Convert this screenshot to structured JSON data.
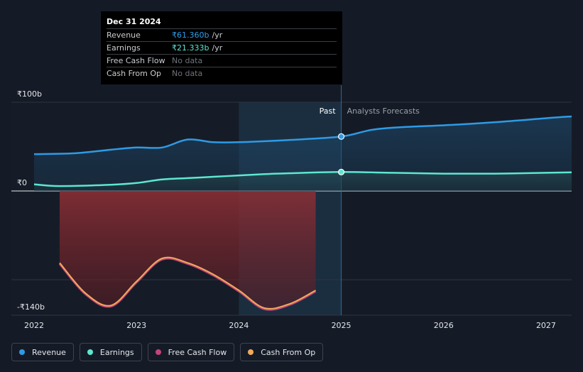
{
  "tooltip": {
    "date": "Dec 31 2024",
    "rows": [
      {
        "label": "Revenue",
        "value": "₹61.360b",
        "unit": "/yr"
      },
      {
        "label": "Earnings",
        "value": "₹21.333b",
        "unit": "/yr"
      },
      {
        "label": "Free Cash Flow",
        "value": "No data",
        "unit": ""
      },
      {
        "label": "Cash From Op",
        "value": "No data",
        "unit": ""
      }
    ]
  },
  "legend": [
    {
      "label": "Revenue",
      "color": "#2e9be6"
    },
    {
      "label": "Earnings",
      "color": "#5ee6d0"
    },
    {
      "label": "Free Cash Flow",
      "color": "#c2457a"
    },
    {
      "label": "Cash From Op",
      "color": "#f1aa5a"
    }
  ],
  "chart_data": {
    "type": "line",
    "title": "",
    "xlabel": "",
    "ylabel": "",
    "y_unit": "₹ billions",
    "y_tick_labels": [
      {
        "value": 100,
        "label": "₹100b"
      },
      {
        "value": 0,
        "label": "₹0"
      },
      {
        "value": -140,
        "label": "-₹140b"
      }
    ],
    "ylim": [
      -140,
      100
    ],
    "xlim": [
      2022,
      2027.25
    ],
    "x_tick_labels": [
      {
        "value": 2022,
        "label": "2022"
      },
      {
        "value": 2023,
        "label": "2023"
      },
      {
        "value": 2024,
        "label": "2024"
      },
      {
        "value": 2025,
        "label": "2025"
      },
      {
        "value": 2026,
        "label": "2026"
      },
      {
        "value": 2027,
        "label": "2027"
      }
    ],
    "past_label": "Past",
    "forecast_label": "Analysts Forecasts",
    "divider_x": 2025,
    "highlight_start_x": 2024,
    "series": [
      {
        "name": "Revenue",
        "color": "#2e9be6",
        "points": [
          [
            2022,
            41.5
          ],
          [
            2022.4,
            42.5
          ],
          [
            2022.75,
            46.5
          ],
          [
            2023,
            49
          ],
          [
            2023.25,
            49
          ],
          [
            2023.5,
            58
          ],
          [
            2023.75,
            55
          ],
          [
            2024,
            55
          ],
          [
            2024.5,
            57.5
          ],
          [
            2025,
            61.36
          ],
          [
            2025.3,
            69
          ],
          [
            2025.6,
            72
          ],
          [
            2026,
            74
          ],
          [
            2026.5,
            77.5
          ],
          [
            2027,
            82
          ],
          [
            2027.25,
            84
          ]
        ],
        "marker_at": [
          2025,
          61.36
        ]
      },
      {
        "name": "Earnings",
        "color": "#5ee6d0",
        "points": [
          [
            2022,
            7.5
          ],
          [
            2022.25,
            5.5
          ],
          [
            2022.75,
            7
          ],
          [
            2023,
            9
          ],
          [
            2023.25,
            13
          ],
          [
            2023.5,
            14.5
          ],
          [
            2023.75,
            16
          ],
          [
            2024,
            17.5
          ],
          [
            2024.25,
            19
          ],
          [
            2024.5,
            20
          ],
          [
            2025,
            21.333
          ],
          [
            2025.5,
            20.5
          ],
          [
            2026,
            19.5
          ],
          [
            2026.5,
            19.5
          ],
          [
            2027,
            20.5
          ],
          [
            2027.25,
            21
          ]
        ],
        "marker_at": [
          2025,
          21.333
        ]
      },
      {
        "name": "Free Cash Flow",
        "color": "#c2457a",
        "points": [
          [
            2022.25,
            -82
          ],
          [
            2022.5,
            -116
          ],
          [
            2022.75,
            -130
          ],
          [
            2023,
            -103
          ],
          [
            2023.25,
            -77
          ],
          [
            2023.5,
            -82
          ],
          [
            2023.75,
            -95
          ],
          [
            2024,
            -113
          ],
          [
            2024.25,
            -133
          ],
          [
            2024.5,
            -128
          ],
          [
            2024.75,
            -113
          ]
        ]
      },
      {
        "name": "Cash From Op",
        "color": "#f1aa5a",
        "points": [
          [
            2022.25,
            -81
          ],
          [
            2022.5,
            -115
          ],
          [
            2022.75,
            -129
          ],
          [
            2023,
            -102
          ],
          [
            2023.25,
            -76
          ],
          [
            2023.5,
            -81
          ],
          [
            2023.75,
            -94
          ],
          [
            2024,
            -112
          ],
          [
            2024.25,
            -132
          ],
          [
            2024.5,
            -127
          ],
          [
            2024.75,
            -112
          ]
        ]
      }
    ]
  }
}
